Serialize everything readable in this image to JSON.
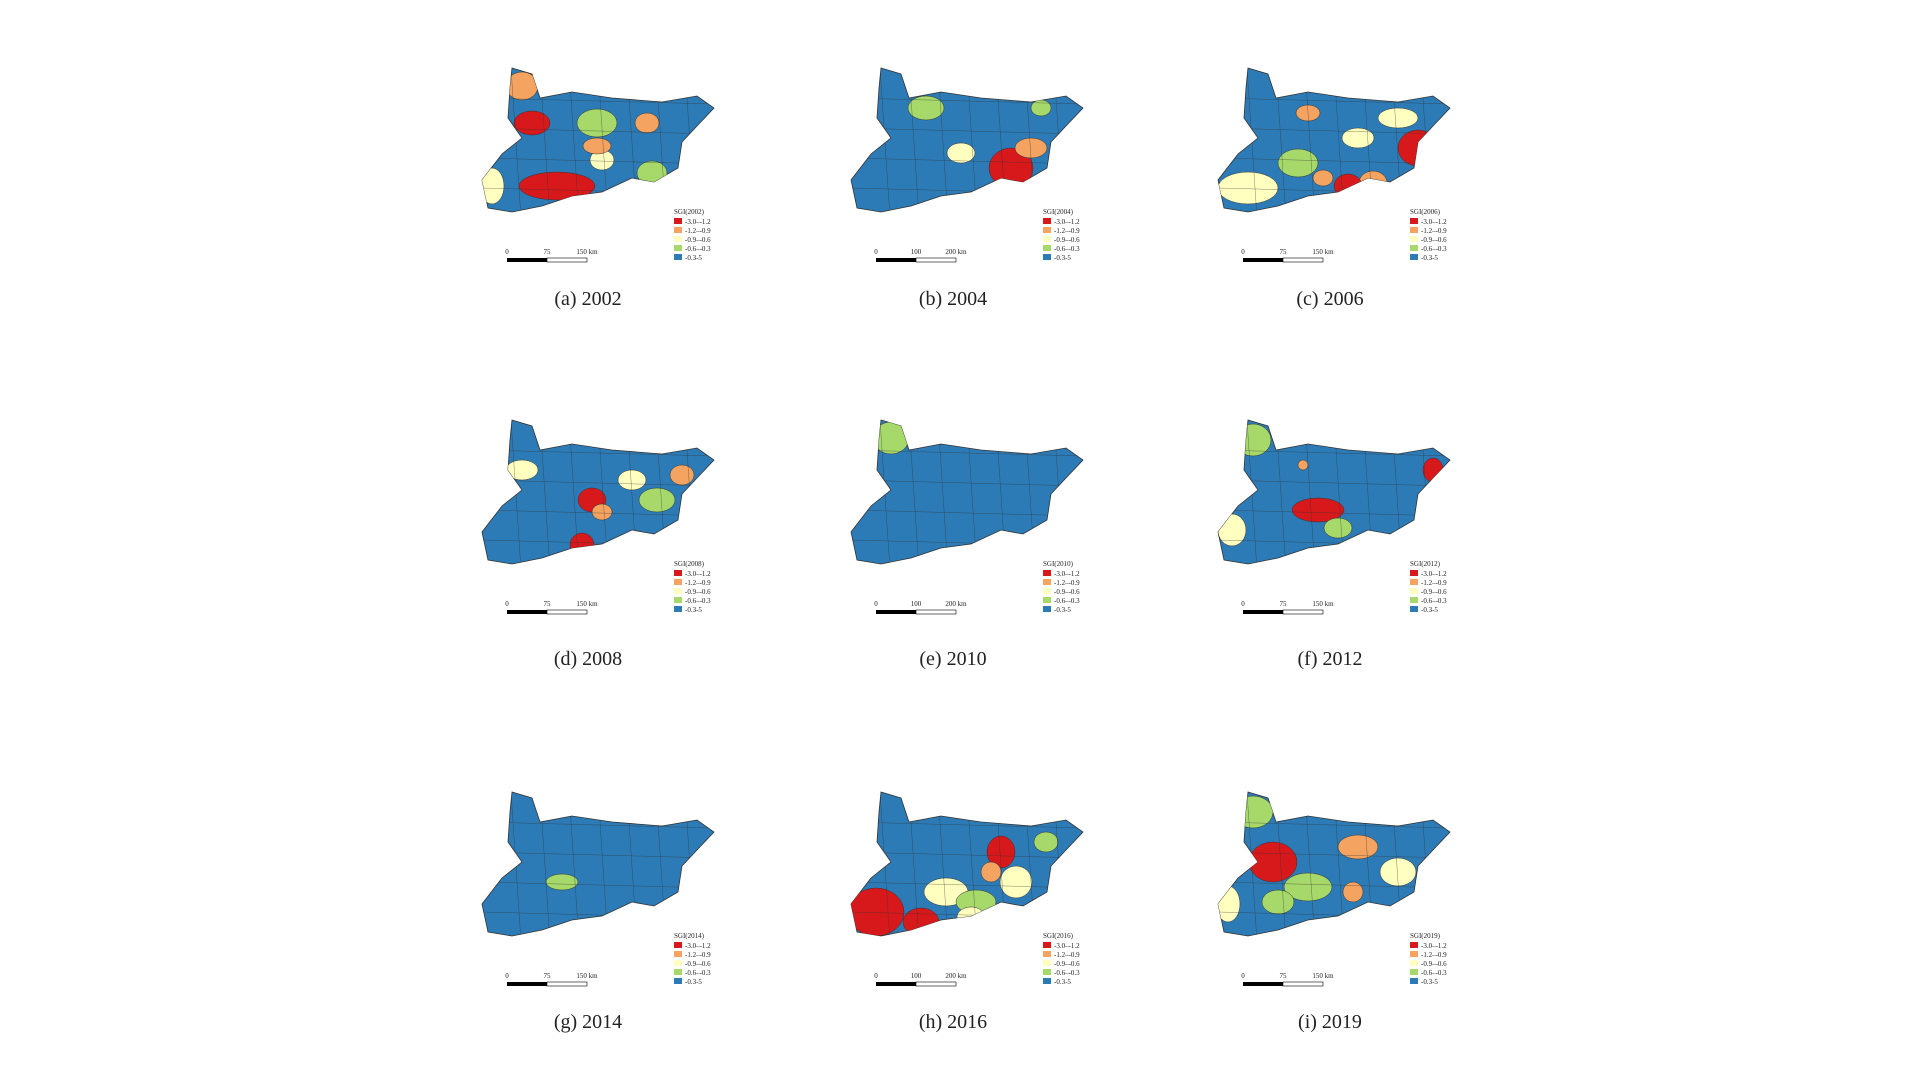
{
  "class_colors": [
    "#d7191c",
    "#f4a460",
    "#ffffbf",
    "#a6d96a",
    "#2c7bb6"
  ],
  "panels": [
    {
      "caption": "(a) 2002",
      "legend_title": "SGI(2002)",
      "legend_labels": [
        "-3.0–-1.2",
        "-1.2–-0.9",
        "-0.9–-0.6",
        "-0.6–-0.3",
        "-0.3-5"
      ],
      "scale": [
        "0",
        "75",
        "150 km"
      ]
    },
    {
      "caption": "(b) 2004",
      "legend_title": "SGI(2004)",
      "legend_labels": [
        "-3.0–-1.2",
        "-1.2–-0.9",
        "-0.9–-0.6",
        "-0.6–-0.3",
        "-0.3-5"
      ],
      "scale": [
        "0",
        "100",
        "200 km"
      ]
    },
    {
      "caption": "(c) 2006",
      "legend_title": "SGI(2006)",
      "legend_labels": [
        "-3.0–-1.2",
        "-1.2–-0.9",
        "-0.9–-0.6",
        "-0.6–-0.3",
        "-0.3-5"
      ],
      "scale": [
        "0",
        "75",
        "150 km"
      ]
    },
    {
      "caption": "(d) 2008",
      "legend_title": "SGI(2008)",
      "legend_labels": [
        "-3.0–-1.2",
        "-1.2–-0.9",
        "-0.9–-0.6",
        "-0.6–-0.3",
        "-0.3-5"
      ],
      "scale": [
        "0",
        "75",
        "150 km"
      ]
    },
    {
      "caption": "(e) 2010",
      "legend_title": "SGI(2010)",
      "legend_labels": [
        "-3.0–-1.2",
        "-1.2–-0.9",
        "-0.9–-0.6",
        "-0.6–-0.3",
        "-0.3-5"
      ],
      "scale": [
        "0",
        "100",
        "200 km"
      ]
    },
    {
      "caption": "(f) 2012",
      "legend_title": "SGI(2012)",
      "legend_labels": [
        "-3.0–-1.2",
        "-1.2–-0.9",
        "-0.9–-0.6",
        "-0.6–-0.3",
        "-0.3-5"
      ],
      "scale": [
        "0",
        "75",
        "150 km"
      ]
    },
    {
      "caption": "(g) 2014",
      "legend_title": "SGI(2014)",
      "legend_labels": [
        "-3.0–-1.2",
        "-1.2–-0.9",
        "-0.9–-0.6",
        "-0.6–-0.3",
        "-0.3-5"
      ],
      "scale": [
        "0",
        "75",
        "150 km"
      ]
    },
    {
      "caption": "(h) 2016",
      "legend_title": "SGI(2016)",
      "legend_labels": [
        "-3.0–-1.2",
        "-1.2–-0.9",
        "-0.9–-0.6",
        "-0.6–-0.3",
        "-0.3-5"
      ],
      "scale": [
        "0",
        "100",
        "200 km"
      ]
    },
    {
      "caption": "(i) 2019",
      "legend_title": "SGI(2019)",
      "legend_labels": [
        "-3.0–-1.2",
        "-1.2–-0.9",
        "-0.9–-0.6",
        "-0.6–-0.3",
        "-0.3-5"
      ],
      "scale": [
        "0",
        "75",
        "150 km"
      ]
    }
  ]
}
